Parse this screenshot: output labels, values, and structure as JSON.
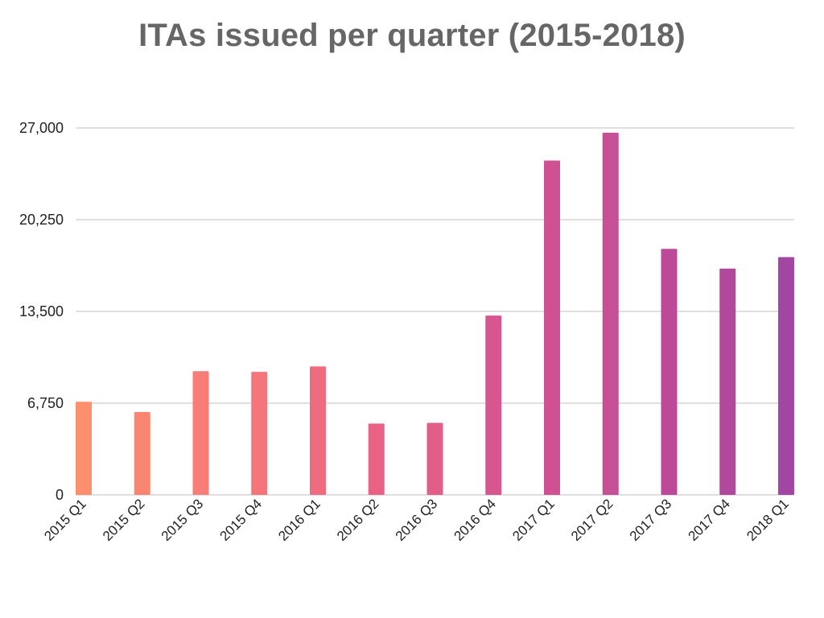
{
  "chart_data": {
    "type": "bar",
    "title": "ITAs issued per quarter (2015-2018)",
    "xlabel": "",
    "ylabel": "",
    "ylim": [
      0,
      27000
    ],
    "yticks": [
      0,
      6750,
      13500,
      20250,
      27000
    ],
    "ytick_labels": [
      "0",
      "6,750",
      "13,500",
      "20,250",
      "27,000"
    ],
    "grid": true,
    "legend": "none",
    "categories": [
      "2015 Q1",
      "2015 Q2",
      "2015 Q3",
      "2015 Q4",
      "2016 Q1",
      "2016 Q2",
      "2016 Q3",
      "2016 Q4",
      "2017 Q1",
      "2017 Q2",
      "2017 Q3",
      "2017 Q4",
      "2018 Q1"
    ],
    "values": [
      6850,
      6100,
      9100,
      9050,
      9450,
      5250,
      5300,
      13200,
      24600,
      26650,
      18100,
      16650,
      17500
    ],
    "colors": [
      "#fd8f6f",
      "#fa8672",
      "#f87c78",
      "#f5757b",
      "#ee6b80",
      "#e96285",
      "#e25e89",
      "#d9558f",
      "#d05193",
      "#c64f96",
      "#bc4a99",
      "#b1489e",
      "#a246a4"
    ]
  }
}
